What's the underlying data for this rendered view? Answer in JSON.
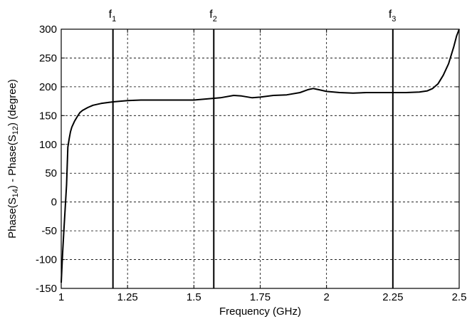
{
  "chart_data": {
    "type": "line",
    "title": "",
    "xlabel": "Frequency (GHz)",
    "ylabel": {
      "p1": "Phase(S",
      "s1": "14",
      "p2": ") - Phase(S",
      "s2": "12",
      "p3": ") (degree)"
    },
    "xlim": [
      1,
      2.5
    ],
    "ylim": [
      -150,
      300
    ],
    "xticks": [
      1,
      1.25,
      1.5,
      1.75,
      2,
      2.25,
      2.5
    ],
    "xtick_labels": [
      "1",
      "1.25",
      "1.5",
      "1.75",
      "2",
      "2.25",
      "2.5"
    ],
    "yticks": [
      -150,
      -100,
      -50,
      0,
      50,
      100,
      150,
      200,
      250,
      300
    ],
    "ytick_labels": [
      "-150",
      "-100",
      "-50",
      "0",
      "50",
      "100",
      "150",
      "200",
      "250",
      "300"
    ],
    "grid": true,
    "colors": {
      "line": "#000000",
      "grid": "#000000",
      "background": "#ffffff"
    },
    "markers": [
      {
        "label": "f",
        "sub": "1",
        "x": 1.195
      },
      {
        "label": "f",
        "sub": "2",
        "x": 1.575
      },
      {
        "label": "f",
        "sub": "3",
        "x": 2.25
      }
    ],
    "series": [
      {
        "x": [
          1.0,
          1.005,
          1.01,
          1.015,
          1.02,
          1.025,
          1.03,
          1.035,
          1.04,
          1.05,
          1.06,
          1.07,
          1.08,
          1.1,
          1.12,
          1.15,
          1.18,
          1.2,
          1.25,
          1.3,
          1.35,
          1.4,
          1.45,
          1.5,
          1.55,
          1.6,
          1.65,
          1.68,
          1.72,
          1.75,
          1.8,
          1.85,
          1.9,
          1.93,
          1.95,
          1.96,
          1.97,
          2.0,
          2.05,
          2.1,
          2.15,
          2.2,
          2.25,
          2.3,
          2.35,
          2.38,
          2.4,
          2.42,
          2.44,
          2.46,
          2.48,
          2.49,
          2.5
        ],
        "y": [
          -140,
          -90,
          -50,
          -10,
          30,
          95,
          110,
          122,
          130,
          140,
          148,
          155,
          159,
          164,
          168,
          171,
          173,
          174,
          176,
          177,
          177,
          177,
          177,
          177,
          179,
          181,
          185,
          184,
          181,
          182,
          185,
          186,
          190,
          195,
          197,
          196,
          195,
          192,
          190,
          189,
          190,
          190,
          190,
          190,
          191,
          193,
          197,
          205,
          220,
          240,
          270,
          288,
          300
        ]
      }
    ]
  }
}
